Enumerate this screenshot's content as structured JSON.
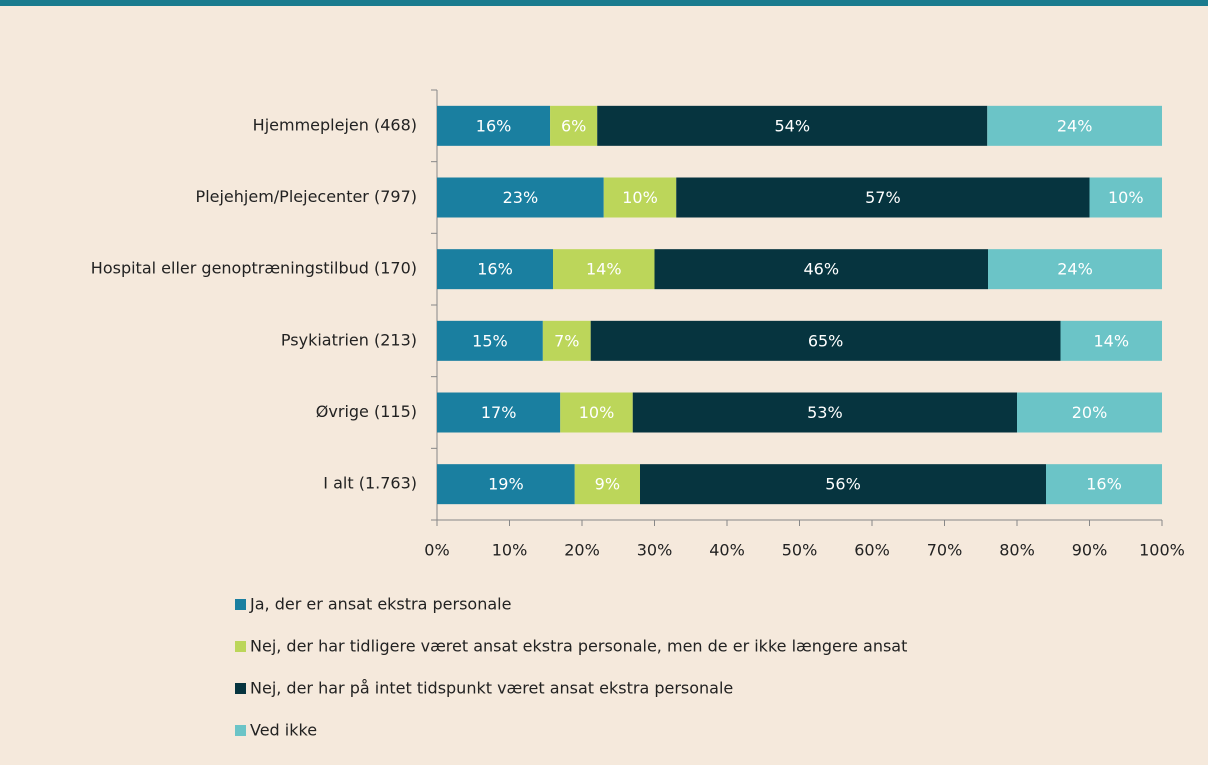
{
  "chart_data": {
    "type": "stacked-barh",
    "categories": [
      "Hjemmeplejen (468)",
      "Plejehjem/Plejecenter (797)",
      "Hospital eller genoptræningstilbud (170)",
      "Psykiatrien (213)",
      "Øvrige (115)",
      "I alt (1.763)"
    ],
    "series": [
      {
        "name": "Ja, der er ansat ekstra personale",
        "color": "#1a7fa0",
        "values": [
          15.6,
          23,
          16,
          14.6,
          17,
          19
        ],
        "value_labels": [
          "16%",
          "23%",
          "16%",
          "15%",
          "17%",
          "19%"
        ]
      },
      {
        "name": "Nej, der har tidligere været ansat ekstra personale, men de er ikke længere ansat",
        "color": "#bcd65a",
        "values": [
          6.5,
          10,
          14,
          6.6,
          10,
          9
        ],
        "value_labels": [
          "6%",
          "10%",
          "14%",
          "7%",
          "10%",
          "9%"
        ]
      },
      {
        "name": "Nej, der har på intet tidspunkt været ansat ekstra personale",
        "color": "#06343f",
        "values": [
          53.8,
          57,
          46,
          64.8,
          53,
          56
        ],
        "value_labels": [
          "54%",
          "57%",
          "46%",
          "65%",
          "53%",
          "56%"
        ]
      },
      {
        "name": "Ved ikke",
        "color": "#6bc4c7",
        "values": [
          24.1,
          10,
          24,
          14,
          20,
          16
        ],
        "value_labels": [
          "24%",
          "10%",
          "24%",
          "14%",
          "20%",
          "16%"
        ]
      }
    ],
    "xlim": [
      0,
      100
    ],
    "xticks": [
      {
        "value": 0,
        "label": "0%"
      },
      {
        "value": 10,
        "label": "10%"
      },
      {
        "value": 20,
        "label": "20%"
      },
      {
        "value": 30,
        "label": "30%"
      },
      {
        "value": 40,
        "label": "40%"
      },
      {
        "value": 50,
        "label": "50%"
      },
      {
        "value": 60,
        "label": "60%"
      },
      {
        "value": 70,
        "label": "70%"
      },
      {
        "value": 80,
        "label": "80%"
      },
      {
        "value": 90,
        "label": "90%"
      },
      {
        "value": 100,
        "label": "100%"
      }
    ]
  }
}
